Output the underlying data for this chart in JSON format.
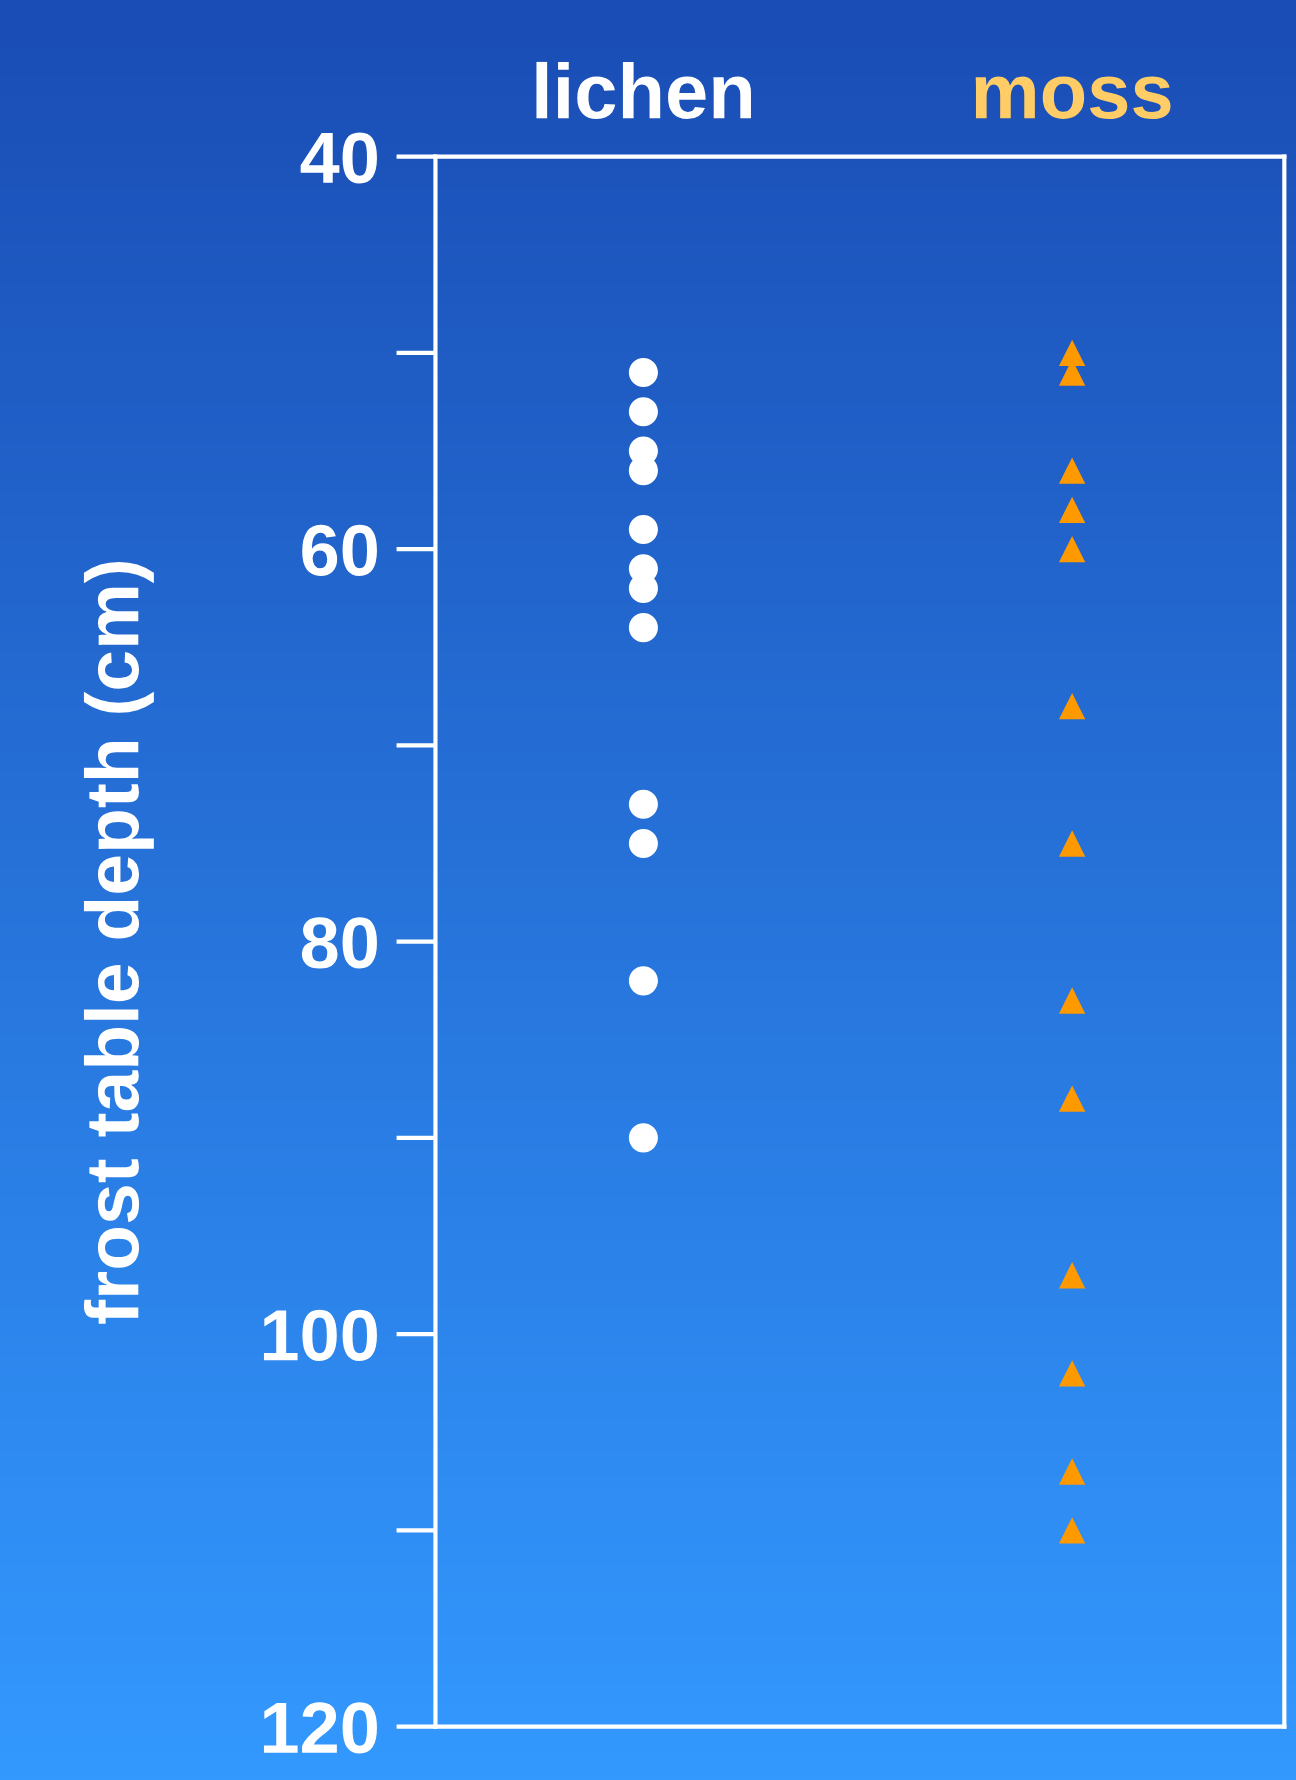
{
  "chart_data": {
    "type": "scatter",
    "ylabel": "frost table depth (cm)",
    "categories": [
      "lichen",
      "moss"
    ],
    "series": [
      {
        "x": [
          "lichen",
          "lichen",
          "lichen",
          "lichen",
          "lichen",
          "lichen",
          "lichen",
          "lichen",
          "lichen",
          "lichen",
          "lichen",
          "lichen"
        ],
        "color": "#ffffff",
        "marker": "circle",
        "values": [
          51,
          53,
          55,
          56,
          59,
          61,
          62,
          64,
          73,
          75,
          82,
          90
        ]
      },
      {
        "x": [
          "moss",
          "moss",
          "moss",
          "moss",
          "moss",
          "moss",
          "moss",
          "moss",
          "moss",
          "moss",
          "moss",
          "moss",
          "moss"
        ],
        "color": "#ff9900",
        "marker": "triangle",
        "values": [
          50,
          51,
          56,
          58,
          60,
          68,
          75,
          83,
          88,
          97,
          102,
          107,
          110
        ]
      }
    ],
    "ylim": [
      120,
      40
    ],
    "yticks": [
      40,
      60,
      80,
      100,
      120
    ],
    "grid": false,
    "legend": false
  }
}
